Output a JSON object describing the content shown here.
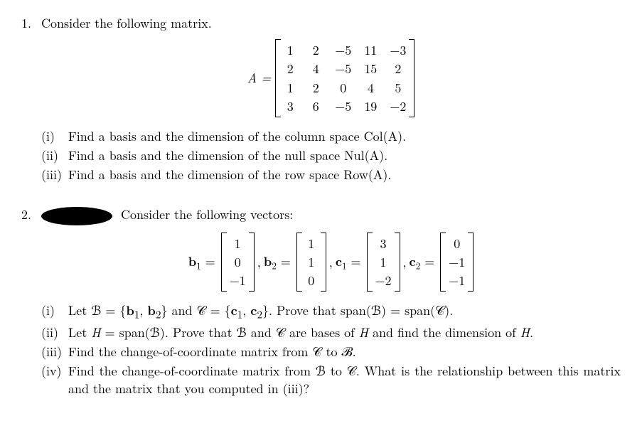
{
  "problem1": {
    "number": "1.",
    "intro": "Consider the following matrix.",
    "matrixLabel": "A =",
    "matrix": {
      "rows": 4,
      "cols": 5,
      "cells": [
        "1",
        "2",
        "−5",
        "11",
        "−3",
        "2",
        "4",
        "−5",
        "15",
        "2",
        "1",
        "2",
        "0",
        "4",
        "5",
        "3",
        "6",
        "−5",
        "19",
        "−2"
      ]
    },
    "parts": [
      {
        "label": "(i)",
        "text": "Find a basis and the dimension of the column space Col(A)."
      },
      {
        "label": "(ii)",
        "text": "Find a basis and the dimension of the null space Nul(A)."
      },
      {
        "label": "(iii)",
        "text": "Find a basis and the dimension of the row space Row(A)."
      }
    ]
  },
  "problem2": {
    "number": "2.",
    "intro": "Consider the following vectors:",
    "vectors": [
      {
        "label": "b",
        "sub": "1",
        "cells": [
          "1",
          "0",
          "−1"
        ]
      },
      {
        "label": "b",
        "sub": "2",
        "cells": [
          "1",
          "1",
          "0"
        ]
      },
      {
        "label": "c",
        "sub": "1",
        "cells": [
          "3",
          "1",
          "−2"
        ]
      },
      {
        "label": "c",
        "sub": "2",
        "cells": [
          "0",
          "−1",
          "−1"
        ]
      }
    ],
    "parts": [
      {
        "label": "(i)",
        "html": "Let ℬ = {<b>b</b><sub>1</sub>, <b>b</b><sub>2</sub>} and 𝒞 = {<b>c</b><sub>1</sub>, <b>c</b><sub>2</sub>}. Prove that span(ℬ) = span(𝒞)."
      },
      {
        "label": "(ii)",
        "html": "Let <i>H</i> = span(ℬ). Prove that ℬ and 𝒞 are bases of <i>H</i> and find the dimension of <i>H</i>."
      },
      {
        "label": "(iii)",
        "html": "Find the change-of-coordinate matrix from 𝒞 to ℬ."
      },
      {
        "label": "(iv)",
        "html": "Find the change-of-coordinate matrix from ℬ to 𝒞. What is the relationship between this matrix and the matrix that you computed in (iii)?"
      }
    ]
  }
}
